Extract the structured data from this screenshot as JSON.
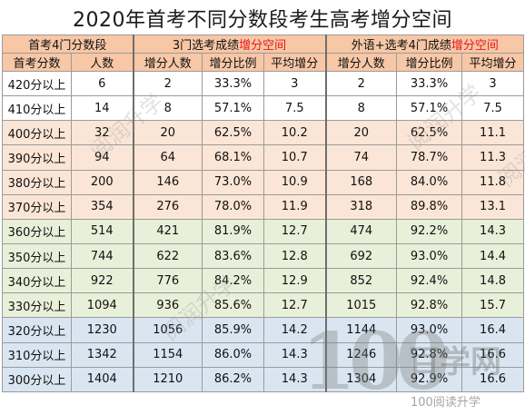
{
  "title": "2020年首考不同分数段考生高考增分空间",
  "header": {
    "group1": "首考4门分数段",
    "group2_prefix": "3门选考成绩",
    "group2_highlight": "增分空间",
    "group3_prefix": "外语+选考4门成绩",
    "group3_highlight": "增分空间",
    "columns": [
      "首考分数",
      "人数",
      "增分人数",
      "增分比例",
      "平均增分",
      "增分人数",
      "增分比例",
      "平均增分"
    ]
  },
  "rows": [
    [
      "420分以上",
      "6",
      "2",
      "33.3%",
      "3",
      "2",
      "33.3%",
      "3"
    ],
    [
      "410分以上",
      "14",
      "8",
      "57.1%",
      "7.5",
      "8",
      "57.1%",
      "7.5"
    ],
    [
      "400分以上",
      "32",
      "20",
      "62.5%",
      "10.2",
      "20",
      "62.5%",
      "11.1"
    ],
    [
      "390分以上",
      "94",
      "64",
      "68.1%",
      "10.7",
      "74",
      "78.7%",
      "11.3"
    ],
    [
      "380分以上",
      "200",
      "146",
      "73.0%",
      "10.9",
      "168",
      "84.0%",
      "11.8"
    ],
    [
      "370分以上",
      "354",
      "276",
      "78.0%",
      "11.9",
      "318",
      "89.8%",
      "13.1"
    ],
    [
      "360分以上",
      "514",
      "421",
      "81.9%",
      "12.7",
      "474",
      "92.2%",
      "14.3"
    ],
    [
      "350分以上",
      "744",
      "622",
      "83.6%",
      "12.8",
      "692",
      "93.0%",
      "14.4"
    ],
    [
      "340分以上",
      "922",
      "776",
      "84.2%",
      "12.9",
      "852",
      "92.4%",
      "14.8"
    ],
    [
      "330分以上",
      "1094",
      "936",
      "85.6%",
      "12.7",
      "1015",
      "92.8%",
      "15.7"
    ],
    [
      "320分以上",
      "1230",
      "1056",
      "85.9%",
      "14.2",
      "1144",
      "93.0%",
      "16.4"
    ],
    [
      "310分以上",
      "1342",
      "1154",
      "86.0%",
      "14.3",
      "1246",
      "92.8%",
      "16.6"
    ],
    [
      "300分以上",
      "1404",
      "1210",
      "86.2%",
      "14.3",
      "1304",
      "92.9%",
      "16.6"
    ]
  ],
  "row_groups": [
    "white",
    "white",
    "peach",
    "peach",
    "peach",
    "peach",
    "green",
    "green",
    "green",
    "green",
    "blue",
    "blue",
    "blue"
  ],
  "colors": {
    "header_bg": "#f7c7a6",
    "highlight": "#e8161b",
    "peach": "#fbe5d6",
    "green": "#e9f0da",
    "blue": "#d9e6f2"
  },
  "watermark": {
    "logo_number": "100",
    "logo_text": "百学网",
    "logo_sub": "100阅读升学",
    "diagonal": "阅润升学"
  }
}
